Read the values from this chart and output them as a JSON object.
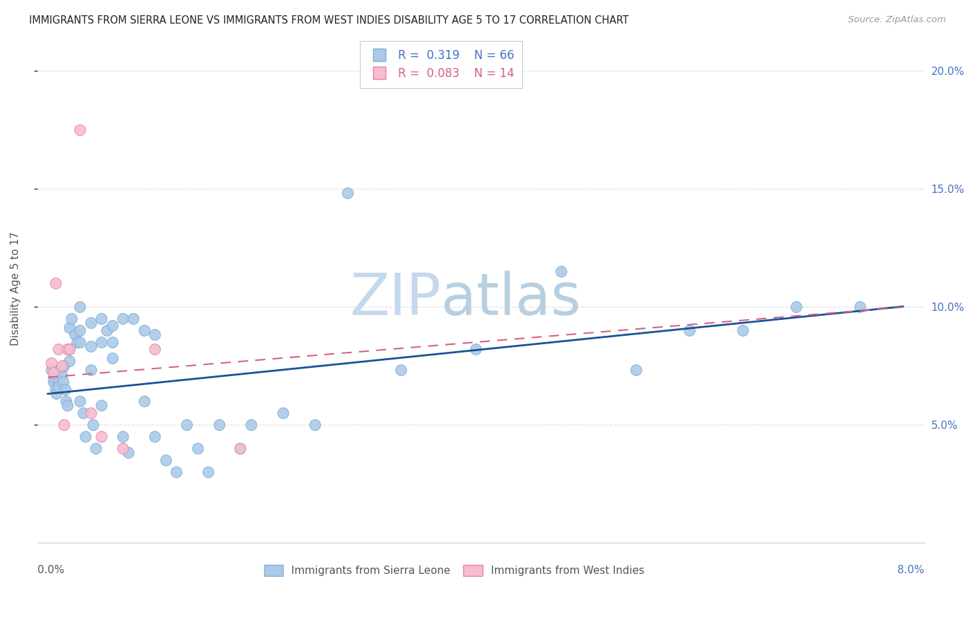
{
  "title": "IMMIGRANTS FROM SIERRA LEONE VS IMMIGRANTS FROM WEST INDIES DISABILITY AGE 5 TO 17 CORRELATION CHART",
  "source": "Source: ZipAtlas.com",
  "ylabel": "Disability Age 5 to 17",
  "label1": "Immigrants from Sierra Leone",
  "label2": "Immigrants from West Indies",
  "series1_color": "#adc9e8",
  "series1_edge": "#7aafd4",
  "series2_color": "#f5bdd0",
  "series2_edge": "#e880a8",
  "line1_color": "#1a5298",
  "line2_color": "#d4608a",
  "watermark": "ZIPatlas",
  "watermark_color_zip": "#c5d8ec",
  "watermark_color_atlas": "#b8cfe0",
  "y_ticks": [
    0.05,
    0.1,
    0.15,
    0.2
  ],
  "y_tick_labels": [
    "5.0%",
    "10.0%",
    "15.0%",
    "20.0%"
  ],
  "x_min": 0.0,
  "x_max": 0.08,
  "y_min": 0.0,
  "y_max": 0.215,
  "sl_x": [
    0.0003,
    0.0005,
    0.0006,
    0.0007,
    0.0008,
    0.001,
    0.001,
    0.001,
    0.0012,
    0.0013,
    0.0014,
    0.0015,
    0.0016,
    0.0017,
    0.0018,
    0.002,
    0.002,
    0.002,
    0.0022,
    0.0025,
    0.0027,
    0.003,
    0.003,
    0.003,
    0.003,
    0.0033,
    0.0035,
    0.004,
    0.004,
    0.004,
    0.0042,
    0.0045,
    0.005,
    0.005,
    0.005,
    0.0055,
    0.006,
    0.006,
    0.006,
    0.007,
    0.007,
    0.0075,
    0.008,
    0.009,
    0.009,
    0.01,
    0.01,
    0.011,
    0.012,
    0.013,
    0.014,
    0.015,
    0.016,
    0.018,
    0.019,
    0.022,
    0.025,
    0.028,
    0.033,
    0.04,
    0.048,
    0.055,
    0.06,
    0.065,
    0.07,
    0.076
  ],
  "sl_y": [
    0.073,
    0.068,
    0.07,
    0.065,
    0.063,
    0.072,
    0.069,
    0.066,
    0.074,
    0.071,
    0.068,
    0.075,
    0.065,
    0.06,
    0.058,
    0.091,
    0.082,
    0.077,
    0.095,
    0.088,
    0.085,
    0.1,
    0.09,
    0.085,
    0.06,
    0.055,
    0.045,
    0.093,
    0.083,
    0.073,
    0.05,
    0.04,
    0.095,
    0.085,
    0.058,
    0.09,
    0.092,
    0.085,
    0.078,
    0.095,
    0.045,
    0.038,
    0.095,
    0.09,
    0.06,
    0.088,
    0.045,
    0.035,
    0.03,
    0.05,
    0.04,
    0.03,
    0.05,
    0.04,
    0.05,
    0.055,
    0.05,
    0.148,
    0.073,
    0.082,
    0.115,
    0.073,
    0.09,
    0.09,
    0.1,
    0.1
  ],
  "wi_x": [
    0.0003,
    0.0005,
    0.0007,
    0.001,
    0.0013,
    0.0015,
    0.0018,
    0.002,
    0.003,
    0.004,
    0.005,
    0.007,
    0.01,
    0.018
  ],
  "wi_y": [
    0.076,
    0.072,
    0.11,
    0.082,
    0.075,
    0.05,
    0.082,
    0.082,
    0.175,
    0.055,
    0.045,
    0.04,
    0.082,
    0.04
  ],
  "line1_x0": 0.0,
  "line1_y0": 0.063,
  "line1_x1": 0.08,
  "line1_y1": 0.1,
  "line2_x0": 0.0,
  "line2_y0": 0.07,
  "line2_x1": 0.035,
  "line2_y1": 0.083
}
